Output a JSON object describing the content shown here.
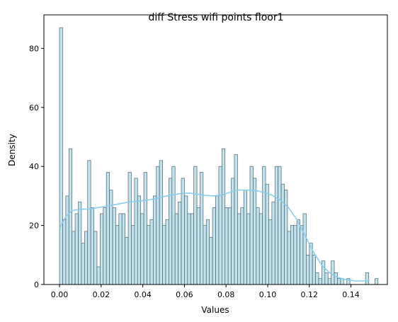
{
  "chart_data": {
    "type": "bar",
    "title": "diff Stress wifi points floor1",
    "xlabel": "Values",
    "ylabel": "Density",
    "xlim": [
      -0.0075,
      0.1575
    ],
    "ylim": [
      0,
      91.35
    ],
    "grid": false,
    "bin_start": 0.0,
    "bin_width": 0.0015,
    "counts": [
      87,
      22,
      30,
      46,
      18,
      24,
      28,
      14,
      18,
      42,
      26,
      18,
      6,
      24,
      26,
      38,
      32,
      26,
      20,
      24,
      24,
      16,
      38,
      20,
      36,
      30,
      24,
      38,
      20,
      22,
      30,
      40,
      42,
      20,
      22,
      36,
      40,
      24,
      28,
      36,
      30,
      24,
      24,
      40,
      26,
      38,
      20,
      22,
      16,
      26,
      30,
      40,
      46,
      26,
      26,
      36,
      44,
      24,
      26,
      32,
      24,
      40,
      36,
      26,
      24,
      40,
      34,
      22,
      28,
      40,
      40,
      34,
      32,
      18,
      20,
      20,
      22,
      20,
      24,
      10,
      14,
      10,
      4,
      2,
      8,
      4,
      2,
      8,
      4,
      2,
      2,
      0,
      2,
      0,
      0,
      0,
      0,
      0,
      4,
      0,
      0,
      2
    ],
    "kde": [
      [
        0.0,
        19
      ],
      [
        0.003,
        23
      ],
      [
        0.006,
        25
      ],
      [
        0.01,
        25.5
      ],
      [
        0.014,
        25.5
      ],
      [
        0.018,
        26
      ],
      [
        0.022,
        26.5
      ],
      [
        0.026,
        27
      ],
      [
        0.03,
        27.5
      ],
      [
        0.034,
        28
      ],
      [
        0.038,
        28.2
      ],
      [
        0.042,
        28.6
      ],
      [
        0.046,
        29
      ],
      [
        0.05,
        29.8
      ],
      [
        0.054,
        30.3
      ],
      [
        0.058,
        30.8
      ],
      [
        0.062,
        31
      ],
      [
        0.066,
        30.6
      ],
      [
        0.07,
        30.2
      ],
      [
        0.074,
        30
      ],
      [
        0.078,
        30.3
      ],
      [
        0.082,
        31.3
      ],
      [
        0.086,
        32
      ],
      [
        0.09,
        32
      ],
      [
        0.094,
        31.8
      ],
      [
        0.098,
        31.3
      ],
      [
        0.102,
        30.3
      ],
      [
        0.106,
        28.6
      ],
      [
        0.11,
        26
      ],
      [
        0.114,
        22
      ],
      [
        0.118,
        16.5
      ],
      [
        0.122,
        11
      ],
      [
        0.126,
        6.5
      ],
      [
        0.13,
        3.8
      ],
      [
        0.134,
        2.3
      ],
      [
        0.138,
        1.6
      ],
      [
        0.142,
        1.2
      ],
      [
        0.146,
        1.2
      ],
      [
        0.149,
        1.3
      ]
    ],
    "xticks": [
      "0.00",
      "0.02",
      "0.04",
      "0.06",
      "0.08",
      "0.10",
      "0.12",
      "0.14"
    ],
    "xtick_values": [
      0.0,
      0.02,
      0.04,
      0.06,
      0.08,
      0.1,
      0.12,
      0.14
    ],
    "yticks": [
      "0",
      "20",
      "40",
      "60",
      "80"
    ],
    "ytick_values": [
      0,
      20,
      40,
      60,
      80
    ],
    "colors": {
      "bar_fill": "#add8e6",
      "bar_stroke": "#4a6470",
      "kde": "#87ceeb"
    }
  }
}
